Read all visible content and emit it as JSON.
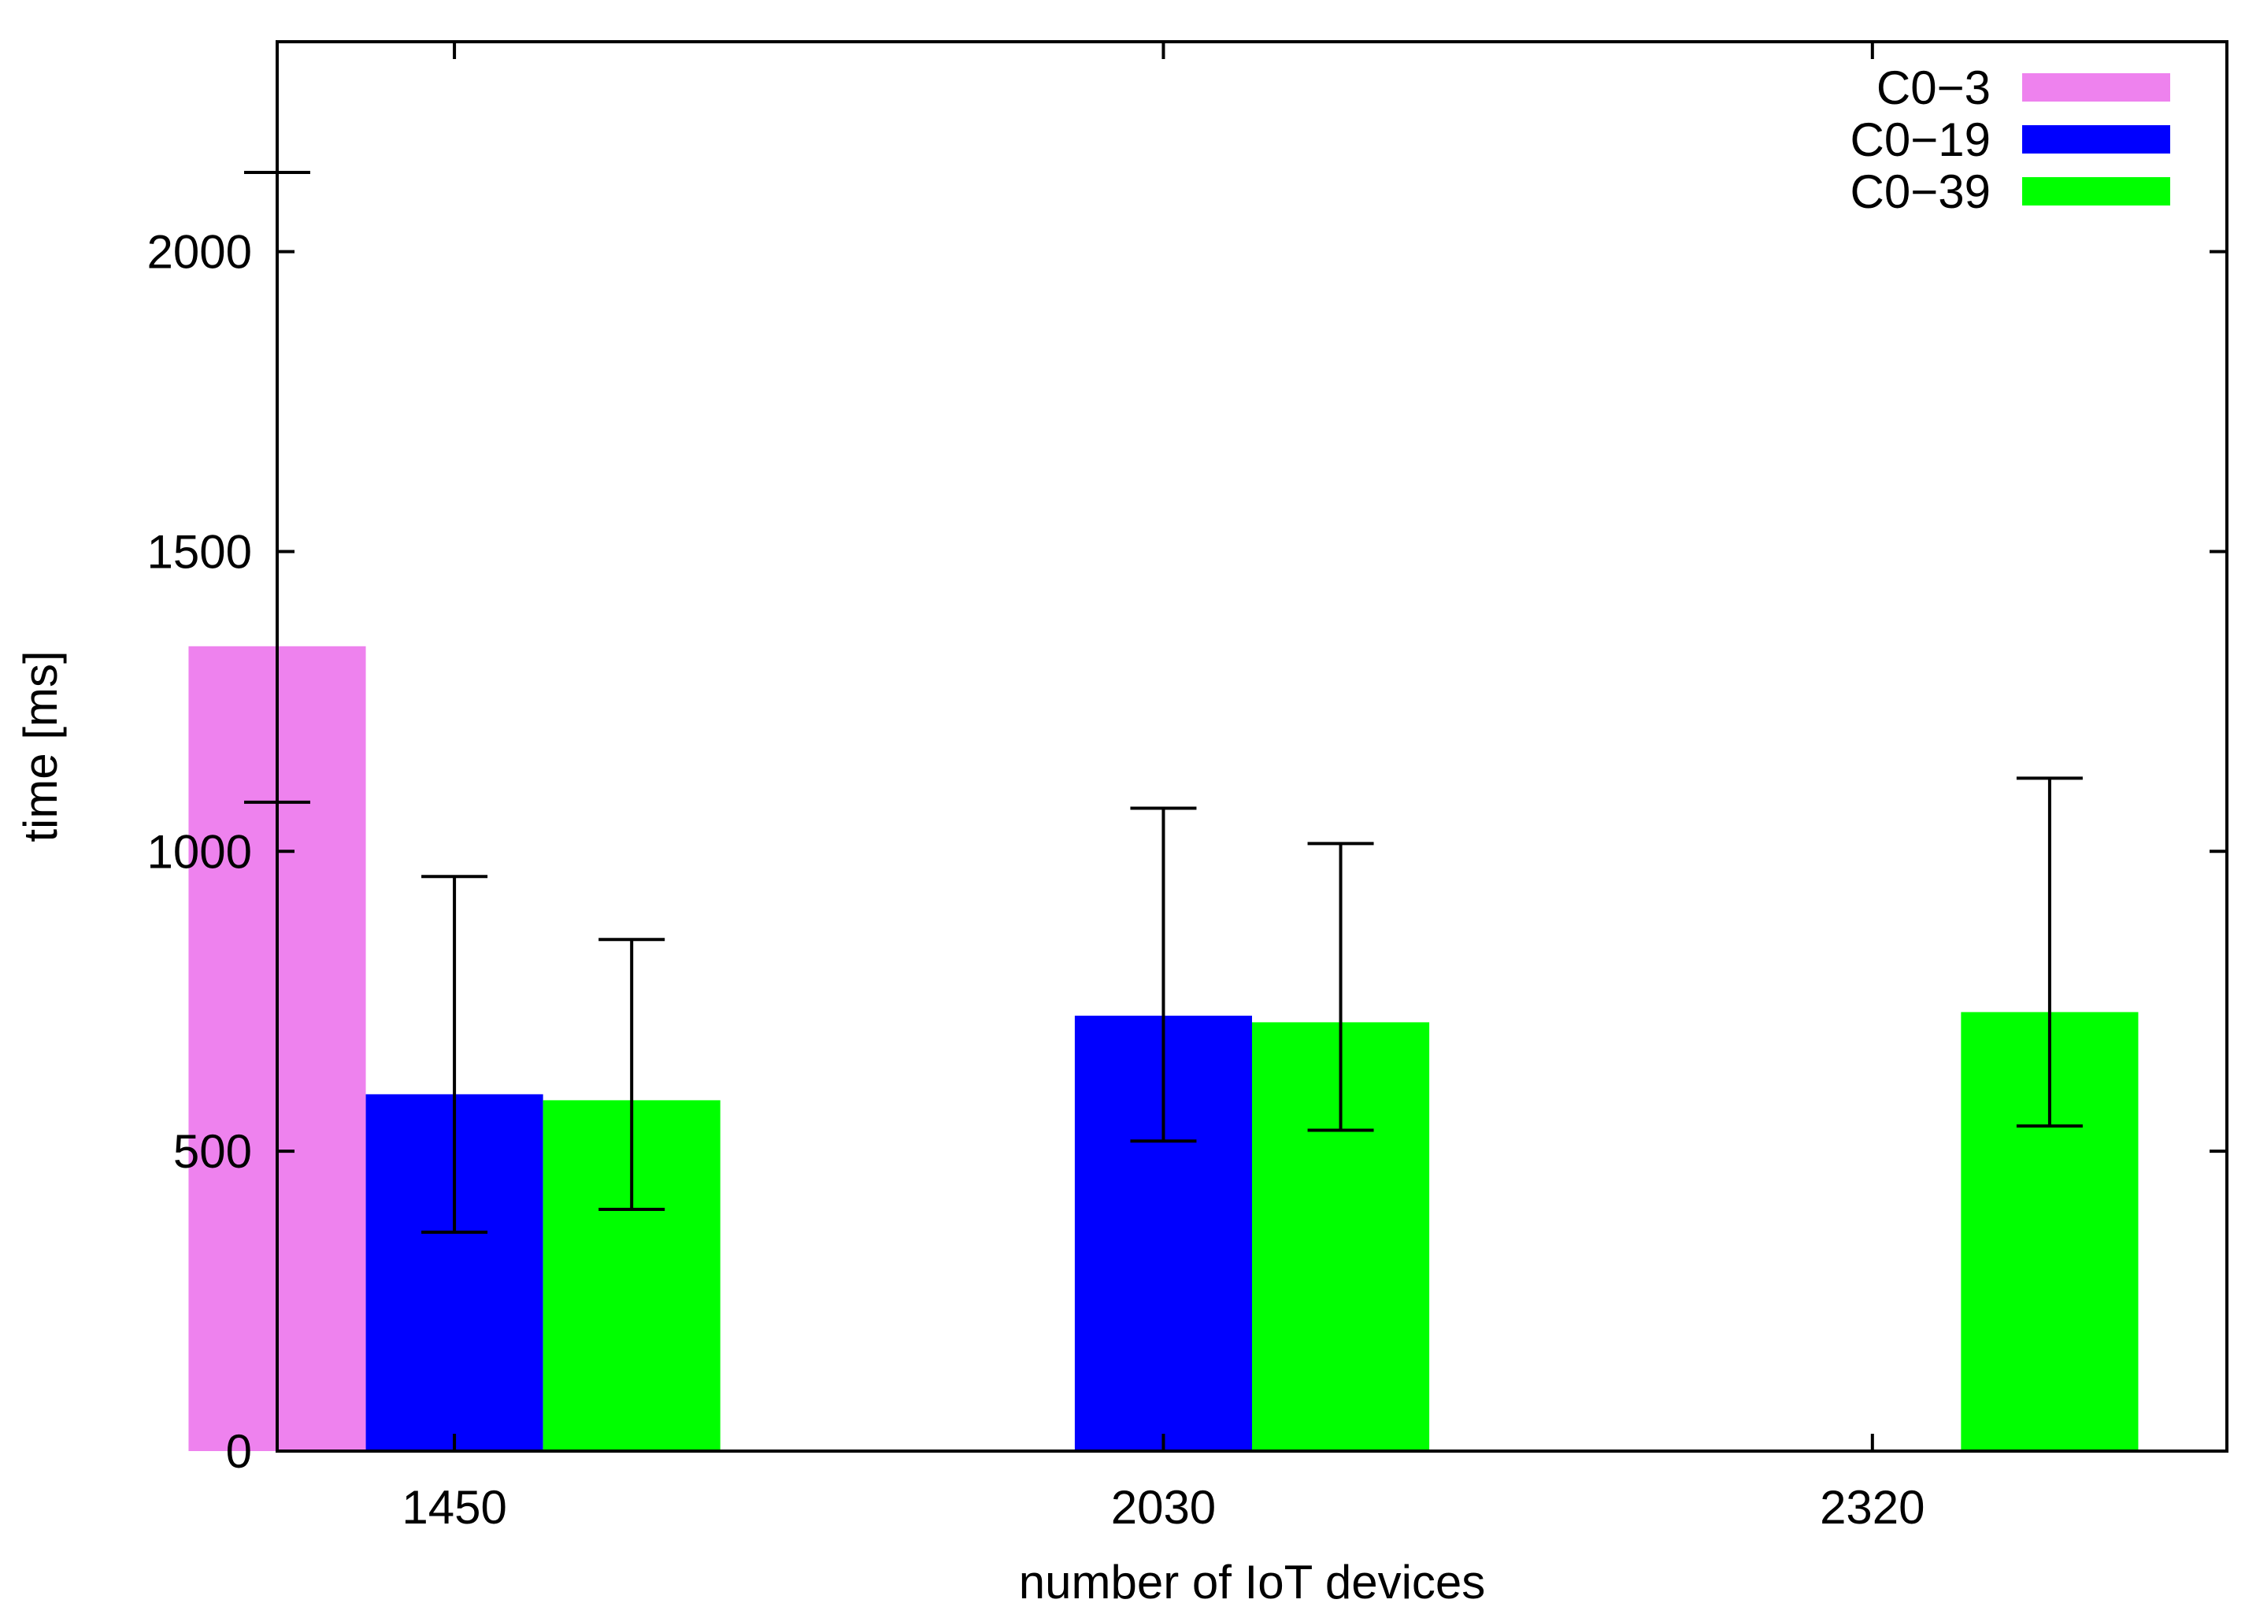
{
  "chart_data": {
    "type": "bar",
    "title": "",
    "xlabel": "number of IoT devices",
    "ylabel": "time [ms]",
    "ylim": [
      0,
      2350
    ],
    "yticks": [
      0,
      500,
      1000,
      1500,
      2000
    ],
    "categories": [
      "1450",
      "2030",
      "2320"
    ],
    "legend_position": "top-right",
    "grid": false,
    "series": [
      {
        "name": "C0−3",
        "color": "#ee82ee",
        "values": [
          1342,
          null,
          null
        ],
        "error_low": [
          1082,
          null,
          null
        ],
        "error_high": [
          2132,
          null,
          null
        ]
      },
      {
        "name": "C0−19",
        "color": "#0000ff",
        "values": [
          595,
          726,
          null
        ],
        "error_low": [
          365,
          517,
          null
        ],
        "error_high": [
          958,
          1072,
          null
        ]
      },
      {
        "name": "C0−39",
        "color": "#00ff00",
        "values": [
          585,
          715,
          732
        ],
        "error_low": [
          403,
          535,
          542
        ],
        "error_high": [
          853,
          1013,
          1122
        ]
      }
    ]
  }
}
